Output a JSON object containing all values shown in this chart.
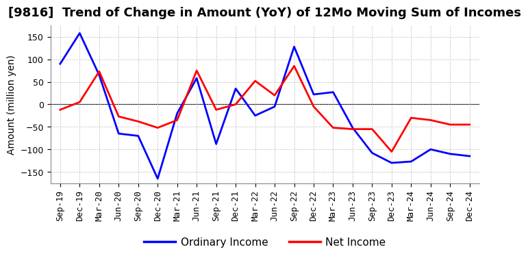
{
  "title": "[9816]  Trend of Change in Amount (YoY) of 12Mo Moving Sum of Incomes",
  "ylabel": "Amount (million yen)",
  "background_color": "#ffffff",
  "grid_color": "#aaaaaa",
  "x_labels": [
    "Sep-19",
    "Dec-19",
    "Mar-20",
    "Jun-20",
    "Sep-20",
    "Dec-20",
    "Mar-21",
    "Jun-21",
    "Sep-21",
    "Dec-21",
    "Mar-22",
    "Jun-22",
    "Sep-22",
    "Dec-22",
    "Mar-23",
    "Jun-23",
    "Sep-23",
    "Dec-23",
    "Mar-24",
    "Jun-24",
    "Sep-24",
    "Dec-24"
  ],
  "ordinary_income": [
    90,
    158,
    65,
    -65,
    -70,
    -165,
    -20,
    58,
    -88,
    35,
    -25,
    -5,
    128,
    22,
    27,
    -52,
    -108,
    -130,
    -127,
    -100,
    -110,
    -115
  ],
  "net_income": [
    -12,
    5,
    73,
    -27,
    -38,
    -52,
    -35,
    75,
    -12,
    0,
    52,
    20,
    85,
    -5,
    -52,
    -55,
    -55,
    -105,
    -30,
    -35,
    -45,
    -45
  ],
  "ordinary_income_color": "#0000ff",
  "net_income_color": "#ff0000",
  "ylim": [
    -175,
    175
  ],
  "yticks": [
    -150,
    -100,
    -50,
    0,
    50,
    100,
    150
  ],
  "line_width": 2.0,
  "title_fontsize": 13,
  "legend_fontsize": 11,
  "tick_fontsize": 9
}
